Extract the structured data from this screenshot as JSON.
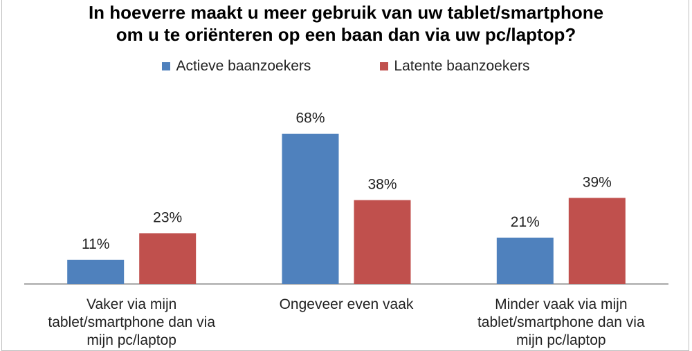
{
  "chart_data": {
    "type": "bar",
    "title": "In hoeverre maakt u meer gebruik van uw tablet/smartphone om u te oriënteren op een baan dan via uw pc/laptop?",
    "title_lines": [
      "In hoeverre maakt u meer gebruik van uw tablet/smartphone",
      "om u te oriënteren op een baan dan via uw pc/laptop?"
    ],
    "categories": [
      "Vaker via mijn tablet/smartphone dan via mijn pc/laptop",
      "Ongeveer even vaak",
      "Minder vaak via mijn tablet/smartphone dan via mijn pc/laptop"
    ],
    "category_lines": [
      [
        "Vaker via mijn",
        "tablet/smartphone dan via",
        "mijn pc/laptop"
      ],
      [
        "Ongeveer even vaak"
      ],
      [
        "Minder vaak via mijn",
        "tablet/smartphone dan via",
        "mijn pc/laptop"
      ]
    ],
    "series": [
      {
        "name": "Actieve baanzoekers",
        "values": [
          11,
          68,
          21
        ],
        "labels": [
          "11%",
          "68%",
          "21%"
        ],
        "color": "#4f81bd"
      },
      {
        "name": "Latente baanzoekers",
        "values": [
          23,
          38,
          39
        ],
        "labels": [
          "23%",
          "38%",
          "39%"
        ],
        "color": "#c0504d"
      }
    ],
    "ylim": [
      0,
      80
    ],
    "grid": false,
    "legend_position": "top",
    "xlabel": "",
    "ylabel": ""
  }
}
